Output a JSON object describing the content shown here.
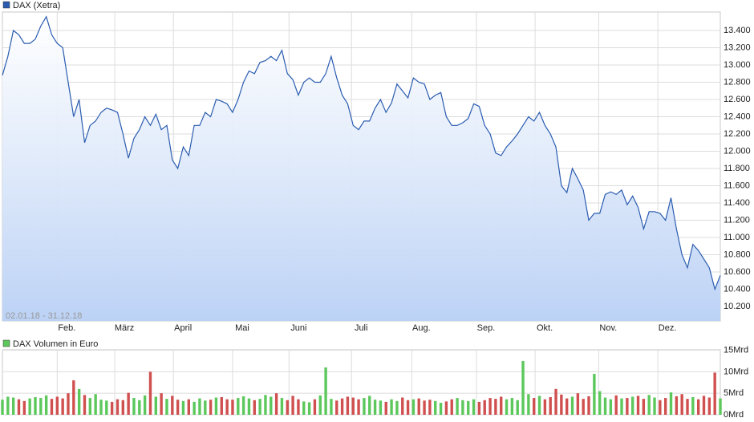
{
  "chart_data": [
    {
      "type": "line",
      "title": "DAX (Xetra)",
      "range_label": "02.01.18 - 31.12.18",
      "color": "#2a5cb0",
      "area_color": "#bcd2f5",
      "grid": true,
      "values": [
        12880,
        13100,
        13400,
        13350,
        13250,
        13250,
        13300,
        13450,
        13560,
        13350,
        13250,
        13200,
        12800,
        12400,
        12600,
        12100,
        12300,
        12350,
        12450,
        12500,
        12480,
        12450,
        12200,
        11920,
        12150,
        12250,
        12400,
        12300,
        12430,
        12250,
        12300,
        11900,
        11800,
        12050,
        11950,
        12300,
        12300,
        12450,
        12400,
        12600,
        12580,
        12550,
        12450,
        12600,
        12800,
        12930,
        12900,
        13030,
        13050,
        13100,
        13050,
        13170,
        12900,
        12830,
        12650,
        12800,
        12850,
        12800,
        12800,
        12900,
        13100,
        12850,
        12650,
        12550,
        12300,
        12250,
        12350,
        12350,
        12500,
        12600,
        12450,
        12560,
        12780,
        12700,
        12620,
        12850,
        12800,
        12780,
        12600,
        12650,
        12680,
        12400,
        12300,
        12300,
        12330,
        12380,
        12550,
        12520,
        12300,
        12200,
        11980,
        11950,
        12050,
        12120,
        12200,
        12300,
        12400,
        12350,
        12450,
        12300,
        12200,
        12050,
        11600,
        11520,
        11800,
        11680,
        11550,
        11200,
        11280,
        11280,
        11500,
        11530,
        11500,
        11550,
        11380,
        11480,
        11350,
        11100,
        11300,
        11300,
        11280,
        11200,
        11460,
        11100,
        10800,
        10650,
        10920,
        10850,
        10750,
        10650,
        10400,
        10560
      ],
      "xlim": [
        0,
        131
      ],
      "xticks": [
        {
          "value": 10,
          "label": "Feb."
        },
        {
          "value": 20.5,
          "label": "März"
        },
        {
          "value": 31.2,
          "label": "April"
        },
        {
          "value": 42,
          "label": "Mai"
        },
        {
          "value": 52.3,
          "label": "Juni"
        },
        {
          "value": 63.7,
          "label": "Juli"
        },
        {
          "value": 74.7,
          "label": "Aug."
        },
        {
          "value": 86.5,
          "label": "Sep."
        },
        {
          "value": 97.2,
          "label": "Okt."
        },
        {
          "value": 108.8,
          "label": "Nov."
        },
        {
          "value": 119.6,
          "label": "Dez."
        }
      ],
      "ylim": [
        10033,
        13614
      ],
      "yticks": [
        {
          "value": 10200,
          "label": "10.200"
        },
        {
          "value": 10400,
          "label": "10.400"
        },
        {
          "value": 10600,
          "label": "10.600"
        },
        {
          "value": 10800,
          "label": "10.800"
        },
        {
          "value": 11000,
          "label": "11.000"
        },
        {
          "value": 11200,
          "label": "11.200"
        },
        {
          "value": 11400,
          "label": "11.400"
        },
        {
          "value": 11600,
          "label": "11.600"
        },
        {
          "value": 11800,
          "label": "11.800"
        },
        {
          "value": 12000,
          "label": "12.000"
        },
        {
          "value": 12200,
          "label": "12.200"
        },
        {
          "value": 12400,
          "label": "12.400"
        },
        {
          "value": 12600,
          "label": "12.600"
        },
        {
          "value": 12800,
          "label": "12.800"
        },
        {
          "value": 13000,
          "label": "13.000"
        },
        {
          "value": 13200,
          "label": "13.200"
        },
        {
          "value": 13400,
          "label": "13.400"
        }
      ]
    },
    {
      "type": "bar",
      "title": "DAX Volumen in Euro",
      "color": "#5cc85c",
      "up_color": "#5cc85c",
      "down_color": "#d05050",
      "values": [
        3.5,
        4.2,
        4.0,
        3.6,
        3.2,
        3.8,
        4.1,
        3.9,
        4.5,
        3.7,
        4.2,
        3.8,
        5.0,
        8.0,
        6.0,
        4.6,
        3.9,
        4.8,
        3.5,
        3.3,
        3.0,
        3.6,
        3.4,
        5.1,
        3.9,
        3.4,
        4.5,
        10.0,
        4.2,
        5.0,
        3.7,
        4.4,
        3.5,
        3.2,
        3.6,
        3.0,
        3.8,
        3.3,
        3.5,
        4.0,
        4.1,
        3.6,
        3.5,
        3.9,
        4.3,
        3.8,
        3.4,
        3.7,
        4.6,
        4.2,
        5.0,
        3.9,
        3.4,
        4.4,
        3.6,
        3.1,
        2.9,
        3.6,
        4.5,
        11.0,
        3.7,
        3.3,
        3.8,
        4.2,
        4.0,
        3.6,
        3.9,
        4.4,
        3.5,
        3.3,
        3.0,
        3.6,
        3.2,
        4.0,
        3.4,
        3.6,
        3.8,
        3.3,
        3.5,
        3.2,
        2.8,
        3.1,
        3.6,
        3.9,
        3.4,
        3.2,
        3.6,
        3.0,
        3.4,
        3.9,
        3.7,
        4.2,
        3.6,
        3.9,
        3.4,
        12.5,
        4.8,
        3.9,
        4.4,
        3.6,
        4.1,
        6.0,
        4.7,
        3.8,
        4.2,
        5.0,
        3.7,
        4.3,
        9.5,
        5.5,
        4.0,
        3.6,
        4.5,
        3.8,
        3.9,
        4.2,
        4.4,
        3.7,
        4.6,
        4.0,
        3.4,
        3.9,
        5.2,
        4.3,
        4.8,
        3.7,
        4.1,
        3.6,
        4.4,
        4.0,
        9.8,
        3.8
      ],
      "ylim": [
        0,
        15.1
      ],
      "yticks": [
        {
          "value": 0,
          "label": "0Mrd"
        },
        {
          "value": 5,
          "label": "5Mrd"
        },
        {
          "value": 10,
          "label": "10Mrd"
        },
        {
          "value": 15,
          "label": "15Mrd"
        }
      ]
    }
  ]
}
